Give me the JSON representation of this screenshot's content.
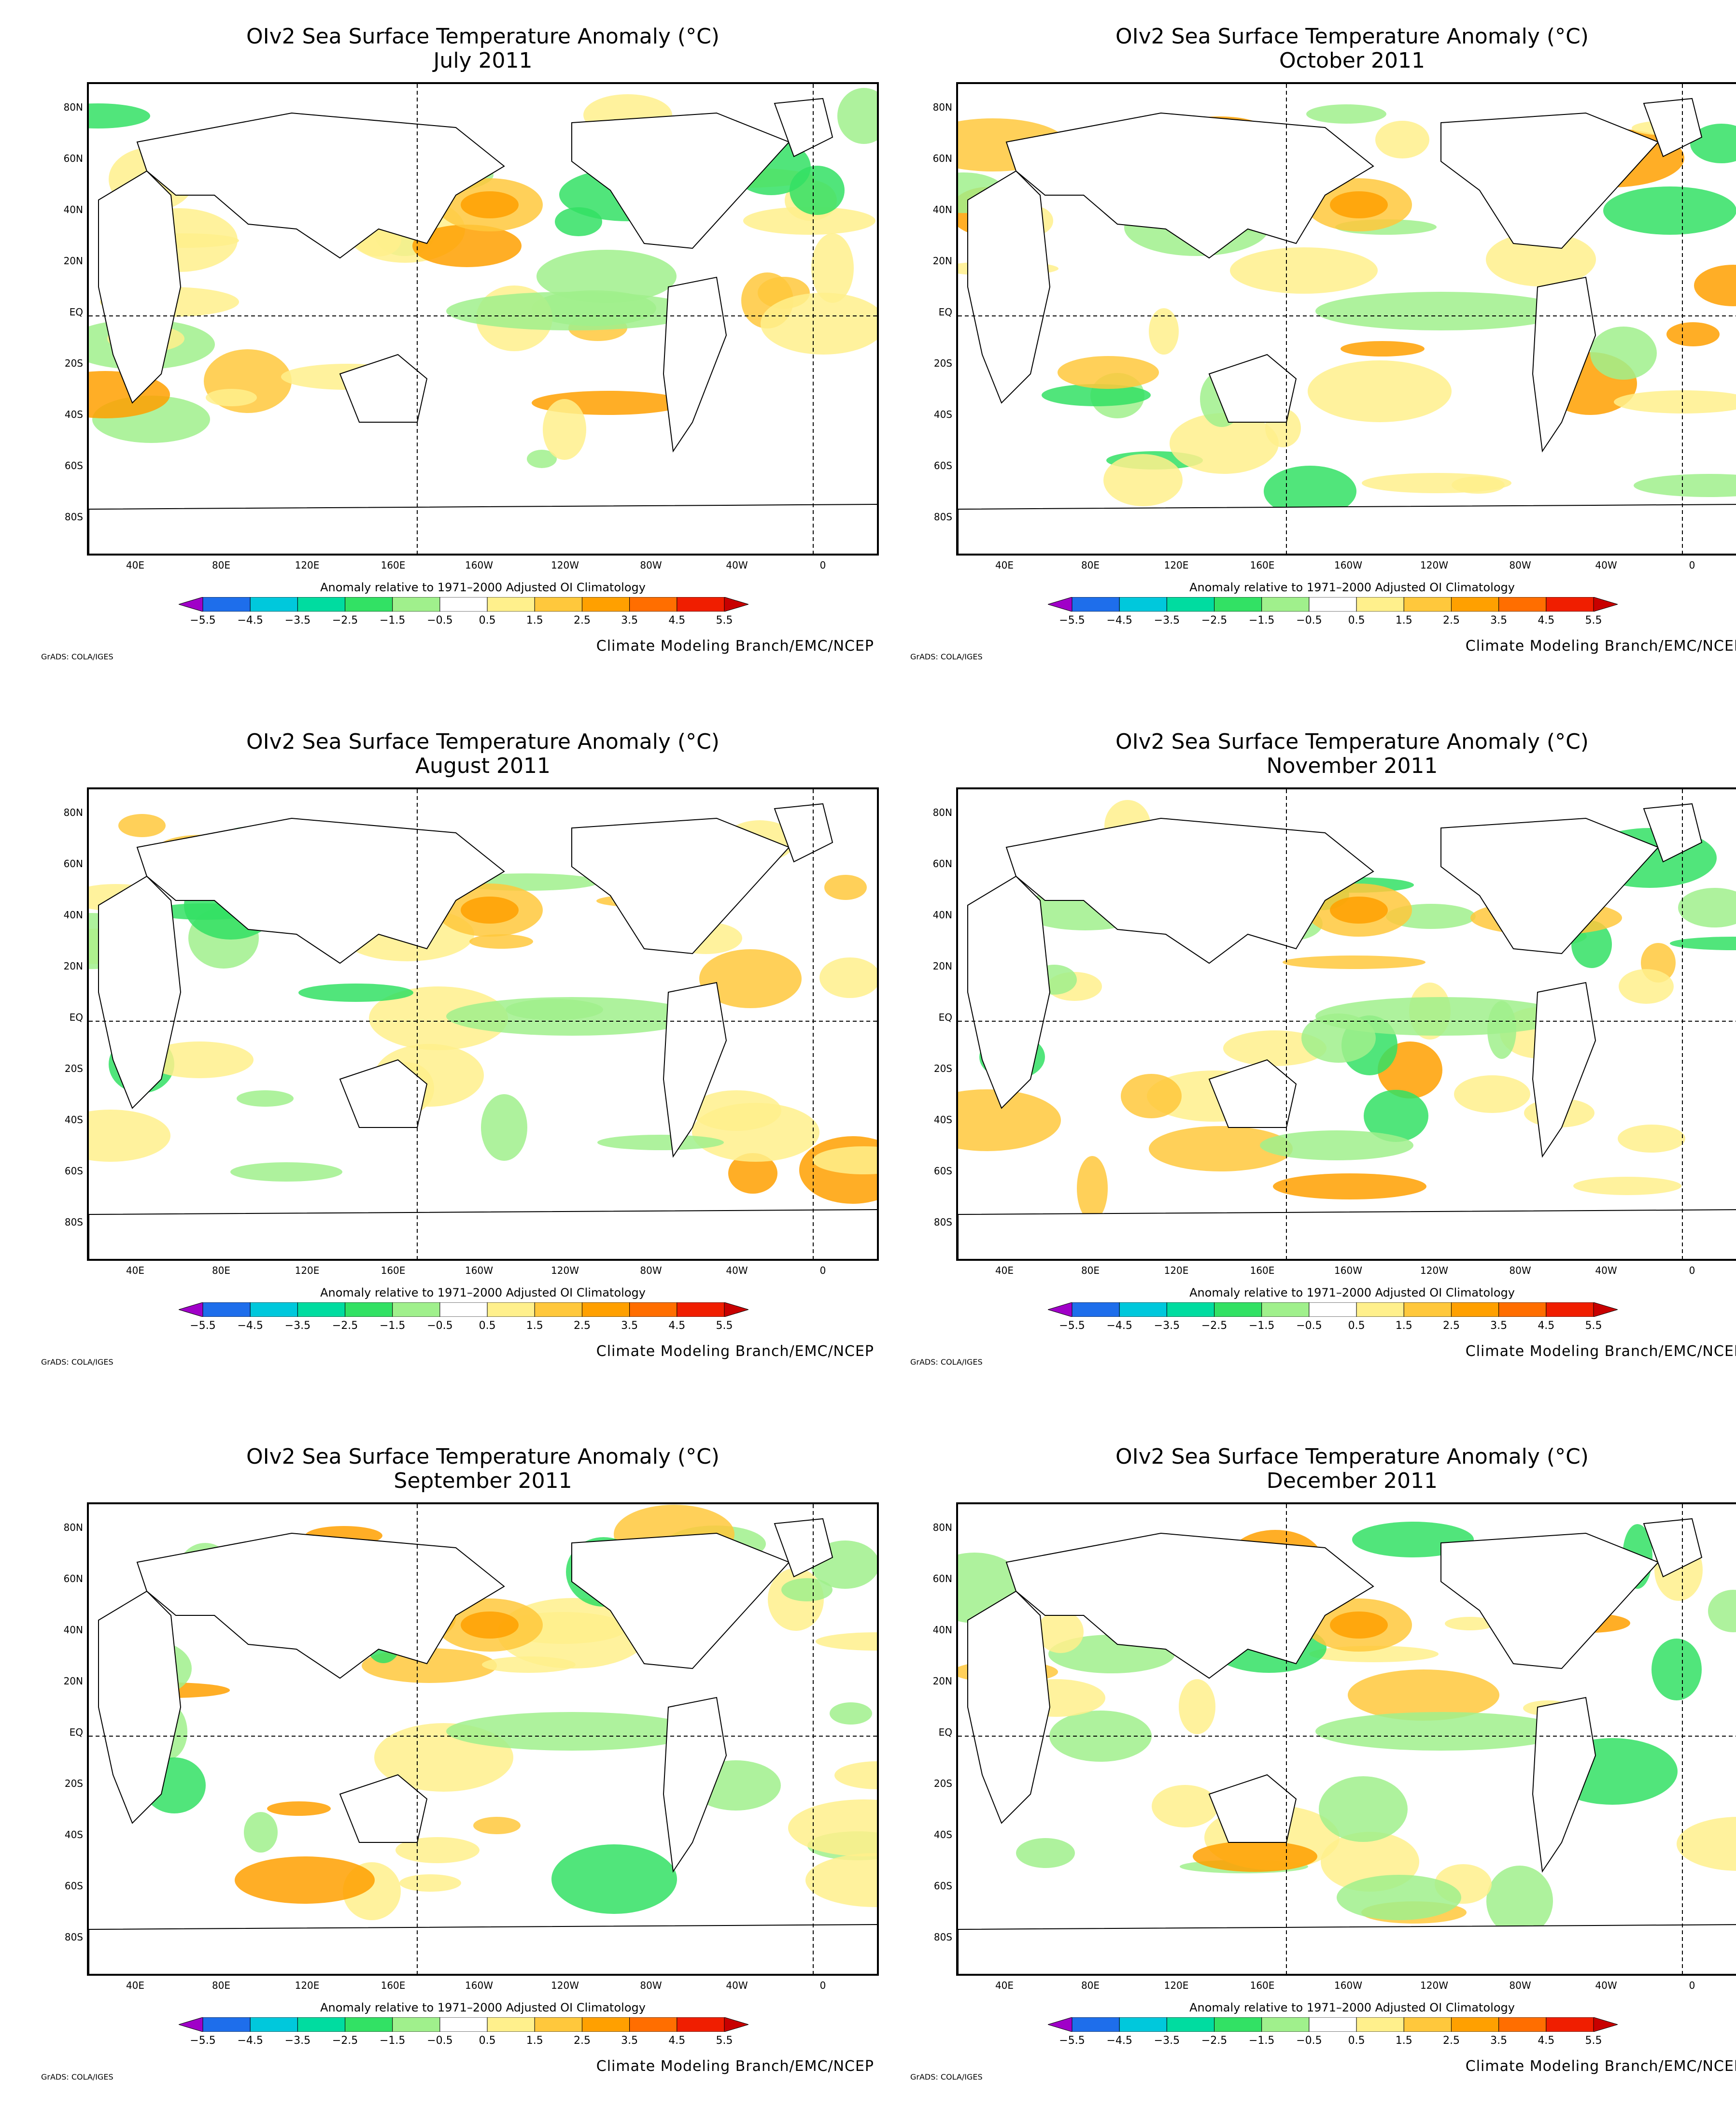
{
  "title": "OIv2 Sea Surface Temperature Anomaly (°C)",
  "panels": [
    {
      "month": "July 2011",
      "col": 0,
      "row": 0
    },
    {
      "month": "October 2011",
      "col": 1,
      "row": 0
    },
    {
      "month": "August 2011",
      "col": 0,
      "row": 1
    },
    {
      "month": "November 2011",
      "col": 1,
      "row": 1
    },
    {
      "month": "September 2011",
      "col": 0,
      "row": 2
    },
    {
      "month": "December 2011",
      "col": 1,
      "row": 2
    }
  ],
  "lat_labels": [
    "80N",
    "60N",
    "40N",
    "20N",
    "EQ",
    "20S",
    "40S",
    "60S",
    "80S"
  ],
  "lon_labels": [
    "40E",
    "80E",
    "120E",
    "160E",
    "160W",
    "120W",
    "80W",
    "40W",
    "0"
  ],
  "colorbar": {
    "caption": "Anomaly relative to 1971–2000 Adjusted OI Climatology",
    "ticks": [
      "−5.5",
      "−4.5",
      "−3.5",
      "−2.5",
      "−1.5",
      "−0.5",
      "0.5",
      "1.5",
      "2.5",
      "3.5",
      "4.5",
      "5.5"
    ],
    "colors": [
      "#a000c8",
      "#1e6eeb",
      "#00c8dc",
      "#00dca0",
      "#32e164",
      "#a0f08c",
      "#ffffff",
      "#fff08c",
      "#ffc83c",
      "#ffa000",
      "#ff6e00",
      "#f01e00",
      "#c80000"
    ]
  },
  "credit": "Climate Modeling Branch/EMC/NCEP",
  "grads": "GrADS: COLA/IGES"
}
